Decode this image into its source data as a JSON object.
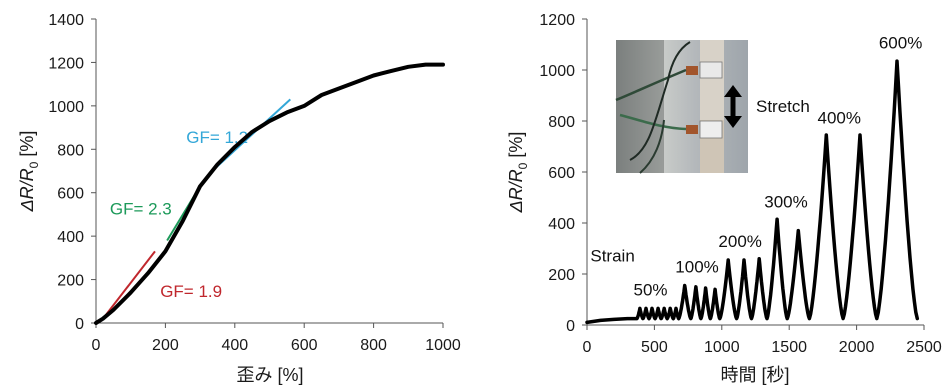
{
  "colors": {
    "data": "#000000",
    "gf_low": "#c0272d",
    "gf_mid": "#1d9a5a",
    "gf_high": "#33a7d8"
  },
  "chart_data": [
    {
      "type": "line",
      "xlabel": "歪み [%]",
      "ylabel_main": "ΔR/R",
      "ylabel_sub": "0",
      "ylabel_unit": " [%]",
      "xlim": [
        0,
        1000
      ],
      "ylim": [
        0,
        1400
      ],
      "xticks": [
        0,
        200,
        400,
        600,
        800,
        1000
      ],
      "yticks": [
        0,
        200,
        400,
        600,
        800,
        1000,
        1200,
        1400
      ],
      "grid": false,
      "series": [
        {
          "x": [
            0,
            20,
            50,
            100,
            150,
            200,
            250,
            300,
            350,
            400,
            450,
            500,
            550,
            600,
            650,
            700,
            750,
            800,
            850,
            900,
            950,
            1000
          ],
          "y": [
            0,
            20,
            60,
            140,
            230,
            330,
            470,
            630,
            730,
            810,
            880,
            930,
            970,
            1000,
            1050,
            1080,
            1110,
            1140,
            1160,
            1180,
            1190,
            1190
          ]
        }
      ],
      "annotations": [
        {
          "text": "GF= 1.9",
          "color_key": "gf_low",
          "label_at": [
            185,
            120
          ],
          "line": [
            [
              25,
              30
            ],
            [
              170,
              330
            ]
          ]
        },
        {
          "text": "GF= 2.3",
          "color_key": "gf_mid",
          "label_at": [
            40,
            500
          ],
          "line": [
            [
              205,
              380
            ],
            [
              300,
              630
            ]
          ]
        },
        {
          "text": "GF= 1.2",
          "color_key": "gf_high",
          "label_at": [
            260,
            830
          ],
          "line": [
            [
              335,
              700
            ],
            [
              560,
              1030
            ]
          ]
        }
      ]
    },
    {
      "type": "line",
      "xlabel": "時間 [秒]",
      "ylabel_main": "ΔR/R",
      "ylabel_sub": "0",
      "ylabel_unit": " [%]",
      "xlim": [
        0,
        2500
      ],
      "ylim": [
        0,
        1200
      ],
      "xticks": [
        0,
        500,
        1000,
        1500,
        2000,
        2500
      ],
      "yticks": [
        0,
        200,
        400,
        600,
        800,
        1000,
        1200
      ],
      "grid": false,
      "baseline": [
        [
          0,
          10
        ],
        [
          100,
          18
        ],
        [
          200,
          22
        ],
        [
          300,
          25
        ],
        [
          370,
          25
        ]
      ],
      "cycles": [
        {
          "t0": 370,
          "t1": 415,
          "peak": 65
        },
        {
          "t0": 415,
          "t1": 460,
          "peak": 65
        },
        {
          "t0": 460,
          "t1": 505,
          "peak": 65
        },
        {
          "t0": 505,
          "t1": 550,
          "peak": 65
        },
        {
          "t0": 550,
          "t1": 595,
          "peak": 65
        },
        {
          "t0": 595,
          "t1": 640,
          "peak": 65
        },
        {
          "t0": 640,
          "t1": 680,
          "peak": 65
        },
        {
          "t0": 680,
          "t1": 770,
          "peak": 155
        },
        {
          "t0": 770,
          "t1": 845,
          "peak": 150
        },
        {
          "t0": 845,
          "t1": 915,
          "peak": 145
        },
        {
          "t0": 915,
          "t1": 985,
          "peak": 140
        },
        {
          "t0": 985,
          "t1": 1110,
          "peak": 255
        },
        {
          "t0": 1110,
          "t1": 1220,
          "peak": 255
        },
        {
          "t0": 1220,
          "t1": 1335,
          "peak": 260
        },
        {
          "t0": 1335,
          "t1": 1485,
          "peak": 415
        },
        {
          "t0": 1485,
          "t1": 1650,
          "peak": 370
        },
        {
          "t0": 1650,
          "t1": 1900,
          "peak": 745
        },
        {
          "t0": 1900,
          "t1": 2150,
          "peak": 745
        },
        {
          "t0": 2150,
          "t1": 2450,
          "peak": 1035
        }
      ],
      "labels": [
        {
          "text": "Strain",
          "at": [
            25,
            250
          ]
        },
        {
          "text": "50%",
          "at": [
            345,
            115
          ]
        },
        {
          "text": "100%",
          "at": [
            655,
            205
          ]
        },
        {
          "text": "200%",
          "at": [
            975,
            305
          ]
        },
        {
          "text": "300%",
          "at": [
            1315,
            460
          ]
        },
        {
          "text": "400%",
          "at": [
            1710,
            790
          ]
        },
        {
          "text": "600%",
          "at": [
            2165,
            1085
          ]
        }
      ],
      "inset": {
        "text": "Stretch"
      }
    }
  ]
}
